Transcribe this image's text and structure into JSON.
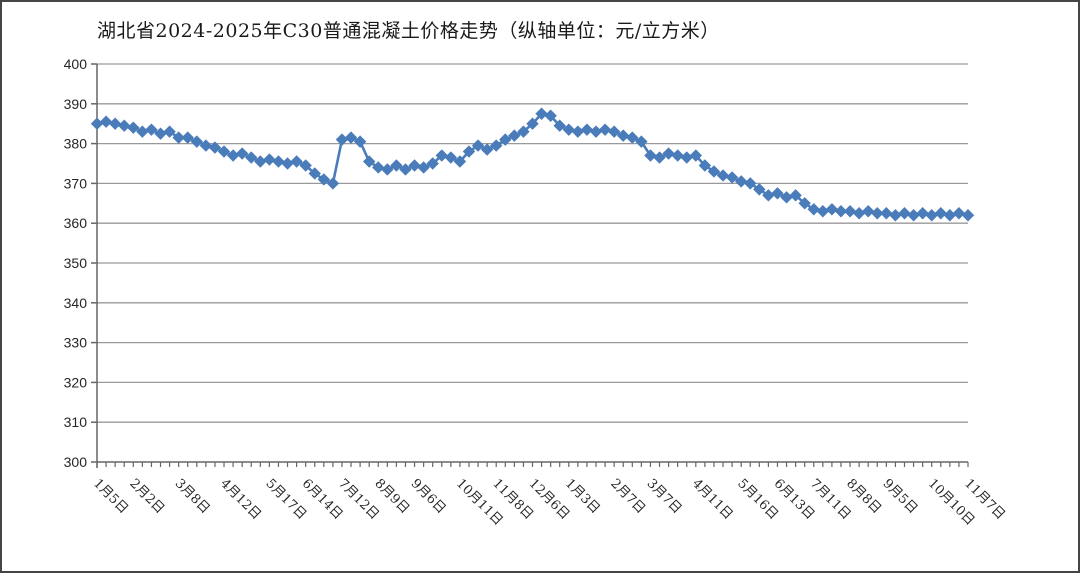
{
  "chart_data": {
    "type": "line",
    "title": "湖北省2024-2025年C30普通混凝土价格走势（纵轴单位：元/立方米）",
    "xlabel": "",
    "ylabel": "",
    "y_unit": "元/立方米",
    "y_axis": {
      "min": 300,
      "max": 400,
      "step": 10
    },
    "y_tick_labels": [
      "400",
      "390",
      "380",
      "370",
      "360",
      "350",
      "340",
      "330",
      "320",
      "310",
      "300"
    ],
    "grid": "horizontal",
    "legend": "none",
    "marker": "diamond",
    "x_ticks": [
      {
        "label": "1月5日",
        "index": 0
      },
      {
        "label": "2月2日",
        "index": 4
      },
      {
        "label": "3月8日",
        "index": 9
      },
      {
        "label": "4月12日",
        "index": 14
      },
      {
        "label": "5月17日",
        "index": 19
      },
      {
        "label": "6月14日",
        "index": 23
      },
      {
        "label": "7月12日",
        "index": 27
      },
      {
        "label": "8月9日",
        "index": 31
      },
      {
        "label": "9月6日",
        "index": 35
      },
      {
        "label": "10月11日",
        "index": 40
      },
      {
        "label": "11月8日",
        "index": 44
      },
      {
        "label": "12月6日",
        "index": 48
      },
      {
        "label": "1月3日",
        "index": 52
      },
      {
        "label": "2月7日",
        "index": 57
      },
      {
        "label": "3月7日",
        "index": 61
      },
      {
        "label": "4月11日",
        "index": 66
      },
      {
        "label": "5月16日",
        "index": 71
      },
      {
        "label": "6月13日",
        "index": 75
      },
      {
        "label": "7月11日",
        "index": 79
      },
      {
        "label": "8月8日",
        "index": 83
      },
      {
        "label": "9月5日",
        "index": 87
      },
      {
        "label": "10月10日",
        "index": 92
      },
      {
        "label": "11月7日",
        "index": 96
      }
    ],
    "series": [
      {
        "color": "#4a7cba",
        "values": [
          385,
          385.5,
          385,
          384.5,
          384,
          383,
          383.5,
          382.5,
          383,
          381.5,
          381.5,
          380.5,
          379.5,
          379,
          378,
          377,
          377.5,
          376.5,
          375.5,
          376,
          375.5,
          375,
          375.5,
          374.5,
          372.5,
          371,
          370,
          381,
          381.5,
          380.5,
          375.5,
          374,
          373.5,
          374.5,
          373.5,
          374.5,
          374,
          375,
          377,
          376.5,
          375.5,
          378,
          379.5,
          378.5,
          379.5,
          381,
          382,
          383,
          385,
          387.5,
          387,
          384.5,
          383.5,
          383,
          383.5,
          383,
          383.5,
          383,
          382,
          381.5,
          380.5,
          377,
          376.5,
          377.5,
          377,
          376.5,
          377,
          374.5,
          373,
          372,
          371.5,
          370.5,
          370,
          368.5,
          367,
          367.5,
          366.5,
          367,
          365,
          363.5,
          363,
          363.5,
          363,
          363,
          362.5,
          363,
          362.5,
          362.5,
          362,
          362.5,
          362,
          362.5,
          362,
          362.5,
          362,
          362.5,
          362
        ]
      }
    ],
    "colors": {
      "line": "#4a7cba",
      "grid": "#999999",
      "axis": "#666666",
      "text": "#262626",
      "frame_border": "#454545"
    }
  }
}
